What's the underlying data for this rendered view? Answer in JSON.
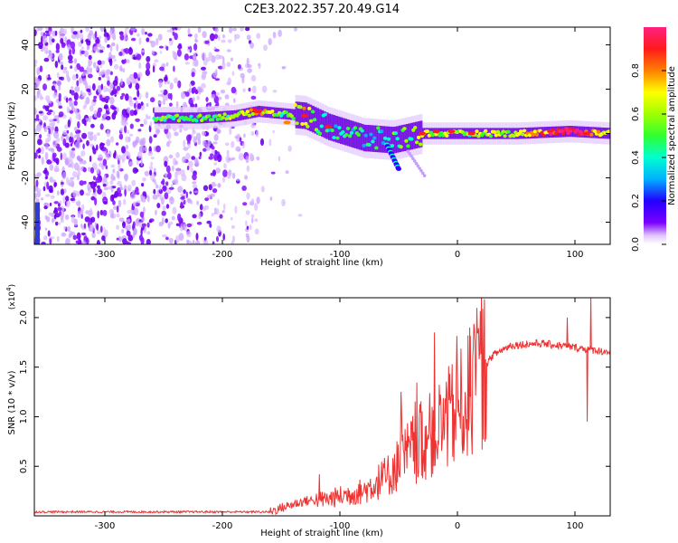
{
  "title": "C2E3.2022.357.20.49.G14",
  "chart_data": [
    {
      "type": "heatmap",
      "xlabel": "Height of straight line (km)",
      "ylabel": "Frequency (Hz)",
      "xlim": [
        -360,
        130
      ],
      "ylim": [
        -50,
        48
      ],
      "xticks": [
        -300,
        -200,
        -100,
        0,
        100
      ],
      "yticks": [
        -40,
        -20,
        0,
        20,
        40
      ],
      "colorbar": {
        "label": "Normalized spectral amplitude",
        "range": [
          0.0,
          1.0
        ],
        "ticks": [
          0.0,
          0.2,
          0.4,
          0.6,
          0.8
        ],
        "tick_labels": [
          "0.0",
          "0.2",
          "0.4",
          "0.6",
          "0.8"
        ]
      },
      "ridge": {
        "description_points": [
          {
            "x": -258,
            "f": 7,
            "amp": 0.45
          },
          {
            "x": -220,
            "f": 7,
            "amp": 0.45
          },
          {
            "x": -190,
            "f": 8,
            "amp": 0.5
          },
          {
            "x": -170,
            "f": 10,
            "amp": 0.75
          },
          {
            "x": -150,
            "f": 9,
            "amp": 0.5
          },
          {
            "x": -130,
            "f": 8,
            "amp": 0.6
          },
          {
            "x": -110,
            "f": 3,
            "amp": 0.4
          },
          {
            "x": -80,
            "f": -2,
            "amp": 0.35
          },
          {
            "x": -55,
            "f": -3,
            "amp": 0.4
          },
          {
            "x": -30,
            "f": 0,
            "amp": 0.55
          },
          {
            "x": 0,
            "f": 0,
            "amp": 0.5
          },
          {
            "x": 50,
            "f": 0,
            "amp": 0.55
          },
          {
            "x": 95,
            "f": 1,
            "amp": 0.95
          },
          {
            "x": 130,
            "f": 0,
            "amp": 0.6
          }
        ],
        "branch": [
          {
            "x": -60,
            "f": -5
          },
          {
            "x": -50,
            "f": -16
          }
        ]
      },
      "noise_region": {
        "x_start": -360,
        "x_end": -170,
        "dense_until": -265
      }
    },
    {
      "type": "line",
      "xlabel": "Height of straight line (km)",
      "ylabel": "SNR (10 * v/v)",
      "y_scale_label": "(x10",
      "y_scale_exponent": "4",
      "y_scale_close": ")",
      "xlim": [
        -360,
        130
      ],
      "ylim": [
        0,
        2.2
      ],
      "xticks": [
        -300,
        -200,
        -100,
        0,
        100
      ],
      "yticks": [
        0.5,
        1.0,
        1.5,
        2.0
      ],
      "ytick_labels": [
        "0.5",
        "1.0",
        "1.5",
        "2.0"
      ],
      "color": "#ee3333",
      "series_envelope": [
        {
          "x": -360,
          "y": 0.04
        },
        {
          "x": -250,
          "y": 0.04
        },
        {
          "x": -160,
          "y": 0.04
        },
        {
          "x": -150,
          "y": 0.08
        },
        {
          "x": -130,
          "y": 0.15
        },
        {
          "x": -110,
          "y": 0.17
        },
        {
          "x": -80,
          "y": 0.25
        },
        {
          "x": -60,
          "y": 0.4
        },
        {
          "x": -40,
          "y": 0.65
        },
        {
          "x": -20,
          "y": 0.85
        },
        {
          "x": 0,
          "y": 1.05
        },
        {
          "x": 10,
          "y": 1.2
        },
        {
          "x": 20,
          "y": 1.45
        },
        {
          "x": 30,
          "y": 1.62
        },
        {
          "x": 45,
          "y": 1.72
        },
        {
          "x": 70,
          "y": 1.74
        },
        {
          "x": 100,
          "y": 1.7
        },
        {
          "x": 130,
          "y": 1.65
        }
      ],
      "spikes": [
        {
          "x": -118,
          "y": 0.42
        },
        {
          "x": -20,
          "y": 1.85
        },
        {
          "x": 10,
          "y": 1.9
        },
        {
          "x": 93,
          "y": 2.0
        },
        {
          "x": 110,
          "y": 0.95
        },
        {
          "x": 113,
          "y": 2.2
        }
      ]
    }
  ]
}
